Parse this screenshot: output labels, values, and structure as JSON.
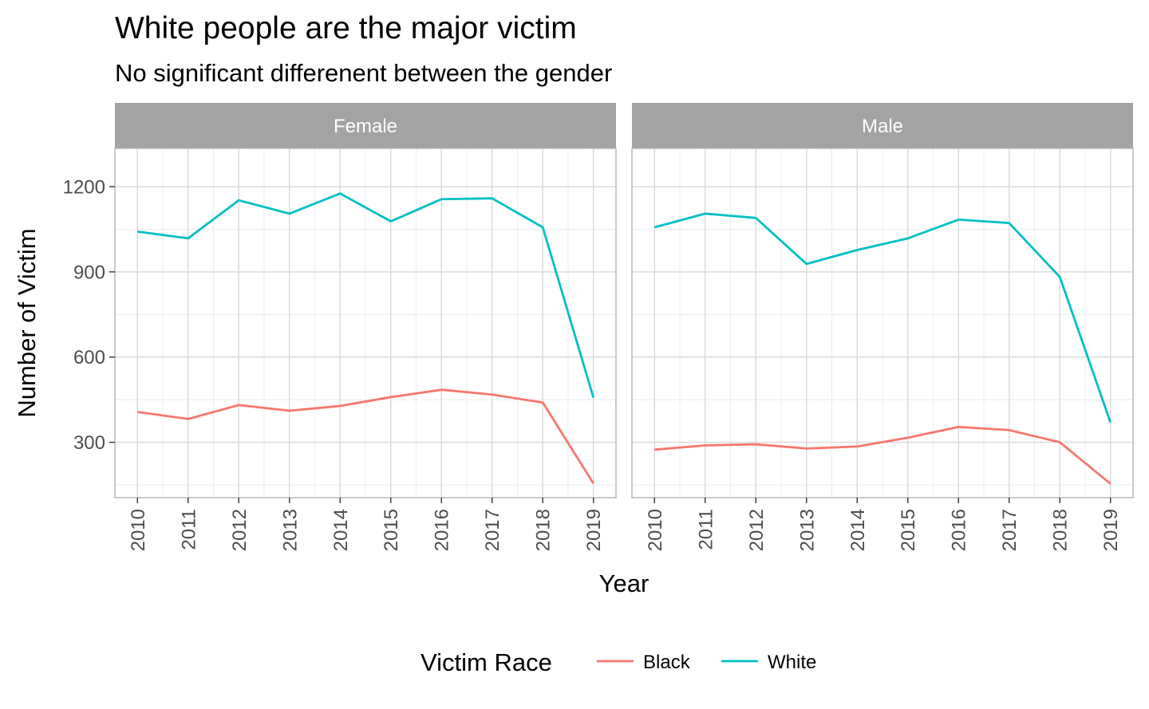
{
  "chart_data": {
    "type": "line",
    "title": "White people are the major victim",
    "subtitle": "No significant differenent between the gender",
    "xlabel": "Year",
    "ylabel": "Number of Victim",
    "x": [
      2010,
      2011,
      2012,
      2013,
      2014,
      2015,
      2016,
      2017,
      2018,
      2019
    ],
    "y_ticks": [
      300,
      600,
      900,
      1200
    ],
    "ylim": [
      105,
      1335
    ],
    "grid": true,
    "legend": {
      "title": "Victim Race",
      "position": "bottom",
      "entries": [
        {
          "label": "Black",
          "color": "#F8766D"
        },
        {
          "label": "White",
          "color": "#00BFC4"
        }
      ]
    },
    "facets": [
      {
        "label": "Female",
        "series": [
          {
            "name": "Black",
            "color": "#F8766D",
            "values": [
              407,
              382,
              431,
              411,
              428,
              459,
              485,
              468,
              440,
              155
            ]
          },
          {
            "name": "White",
            "color": "#00BFC4",
            "values": [
              1042,
              1018,
              1152,
              1105,
              1176,
              1078,
              1156,
              1159,
              1057,
              457
            ]
          }
        ]
      },
      {
        "label": "Male",
        "series": [
          {
            "name": "Black",
            "color": "#F8766D",
            "values": [
              274,
              289,
              293,
              278,
              285,
              316,
              354,
              343,
              300,
              154
            ]
          },
          {
            "name": "White",
            "color": "#00BFC4",
            "values": [
              1057,
              1105,
              1090,
              928,
              977,
              1018,
              1084,
              1072,
              882,
              370
            ]
          }
        ]
      }
    ]
  }
}
